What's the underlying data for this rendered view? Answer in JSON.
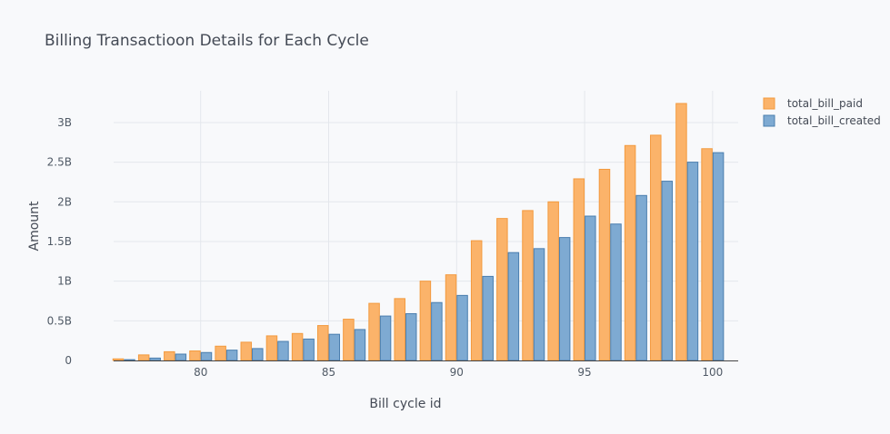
{
  "chart_data": {
    "type": "bar",
    "title": "Billing Transactioon Details for Each Cycle",
    "xlabel": "Bill cycle id",
    "ylabel": "Amount",
    "x_ticks": [
      80,
      85,
      90,
      95,
      100
    ],
    "y_ticks": [
      "0",
      "0.5B",
      "1B",
      "1.5B",
      "2B",
      "2.5B",
      "3B"
    ],
    "ylim": [
      0,
      3.4
    ],
    "y_unit": "billions",
    "x": [
      77,
      78,
      79,
      80,
      81,
      82,
      83,
      84,
      85,
      86,
      87,
      88,
      89,
      90,
      91,
      92,
      93,
      94,
      95,
      96,
      97,
      98,
      99,
      100
    ],
    "series": [
      {
        "name": "total_bill_paid",
        "color": "#fbb36a",
        "stroke": "#f39a3e",
        "values": [
          0.02,
          0.07,
          0.11,
          0.12,
          0.18,
          0.23,
          0.31,
          0.34,
          0.44,
          0.52,
          0.72,
          0.78,
          1.0,
          1.08,
          1.51,
          1.79,
          1.89,
          2.0,
          2.29,
          2.41,
          2.71,
          2.84,
          3.24,
          2.67
        ]
      },
      {
        "name": "total_bill_created",
        "color": "#7eaad2",
        "stroke": "#4a7eae",
        "values": [
          0.01,
          0.03,
          0.08,
          0.1,
          0.13,
          0.15,
          0.24,
          0.27,
          0.33,
          0.39,
          0.56,
          0.59,
          0.73,
          0.82,
          1.06,
          1.36,
          1.41,
          1.55,
          1.82,
          1.72,
          2.08,
          2.26,
          2.5,
          2.62
        ]
      }
    ],
    "grid": true,
    "legend_position": "top-right"
  }
}
